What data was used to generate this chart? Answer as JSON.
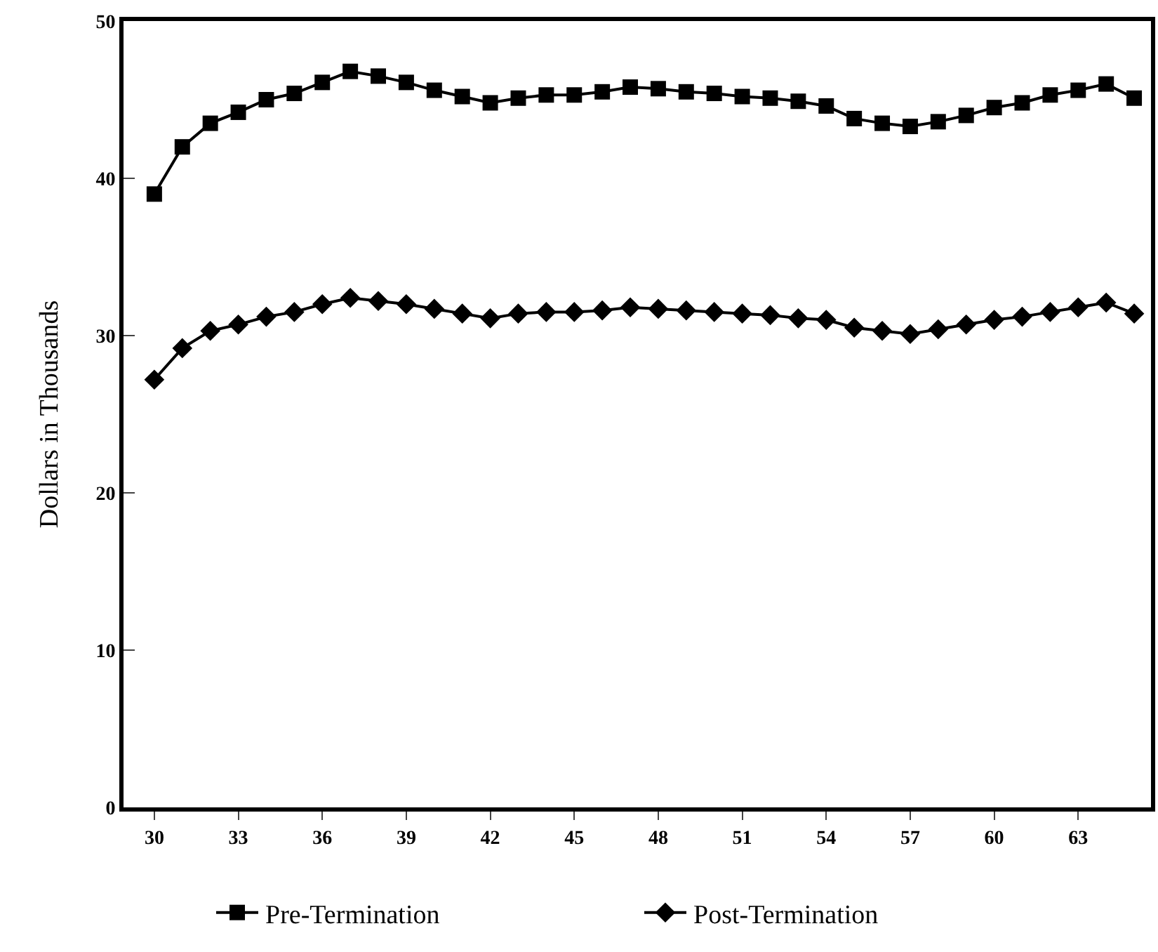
{
  "chart_data": {
    "type": "line",
    "ylabel": "Dollars in Thousands",
    "x": [
      30,
      31,
      32,
      33,
      34,
      35,
      36,
      37,
      38,
      39,
      40,
      41,
      42,
      43,
      44,
      45,
      46,
      47,
      48,
      49,
      50,
      51,
      52,
      53,
      54,
      55,
      56,
      57,
      58,
      59,
      60,
      61,
      62,
      63,
      64,
      65
    ],
    "series": [
      {
        "name": "Pre-Termination",
        "color": "#000000",
        "marker": "square",
        "values": [
          39.0,
          42.0,
          43.5,
          44.2,
          45.0,
          45.4,
          46.1,
          46.8,
          46.5,
          46.1,
          45.6,
          45.2,
          44.8,
          45.1,
          45.3,
          45.3,
          45.5,
          45.8,
          45.7,
          45.5,
          45.4,
          45.2,
          45.1,
          44.9,
          44.6,
          43.8,
          43.5,
          43.3,
          43.6,
          44.0,
          44.5,
          44.8,
          45.3,
          45.6,
          46.0,
          45.1
        ]
      },
      {
        "name": "Post-Termination",
        "color": "#000000",
        "marker": "diamond",
        "values": [
          27.2,
          29.2,
          30.3,
          30.7,
          31.2,
          31.5,
          32.0,
          32.4,
          32.2,
          32.0,
          31.7,
          31.4,
          31.1,
          31.4,
          31.5,
          31.5,
          31.6,
          31.8,
          31.7,
          31.6,
          31.5,
          31.4,
          31.3,
          31.1,
          31.0,
          30.5,
          30.3,
          30.1,
          30.4,
          30.7,
          31.0,
          31.2,
          31.5,
          31.8,
          32.1,
          31.4
        ]
      }
    ],
    "xlim": [
      28.9,
      65.6
    ],
    "xticks": [
      30,
      33,
      36,
      39,
      42,
      45,
      48,
      51,
      54,
      57,
      60,
      63
    ],
    "ylim": [
      0,
      50
    ],
    "yticks": [
      0,
      10,
      20,
      30,
      40,
      50
    ],
    "legend": "bottom",
    "line_style": "solid"
  }
}
